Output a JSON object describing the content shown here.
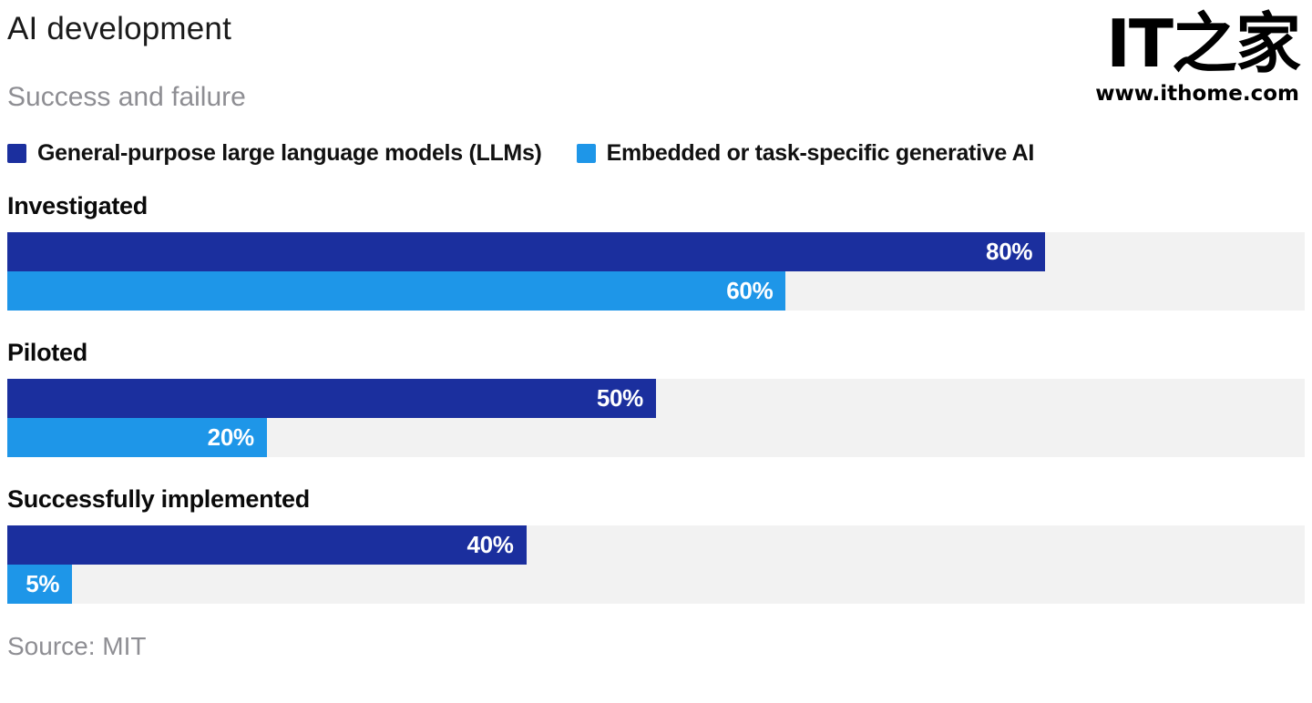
{
  "header": {
    "title": "AI development",
    "subtitle": "Success and failure"
  },
  "watermark": {
    "logo_text": "IT之家",
    "site_text": "www.ithome.com"
  },
  "chart_data": {
    "type": "bar",
    "orientation": "horizontal",
    "title": "AI development",
    "subtitle": "Success and failure",
    "categories": [
      "Investigated",
      "Piloted",
      "Successfully implemented"
    ],
    "series": [
      {
        "name": "General-purpose large language models (LLMs)",
        "color": "#1b2f9e",
        "values": [
          80,
          50,
          40
        ]
      },
      {
        "name": "Embedded or task-specific generative AI",
        "color": "#1e96e8",
        "values": [
          60,
          20,
          5
        ]
      }
    ],
    "value_suffix": "%",
    "xlim": [
      0,
      100
    ],
    "track_color": "#f2f2f2",
    "legend_position": "top",
    "grid": false
  },
  "footer": {
    "source": "Source: MIT"
  }
}
